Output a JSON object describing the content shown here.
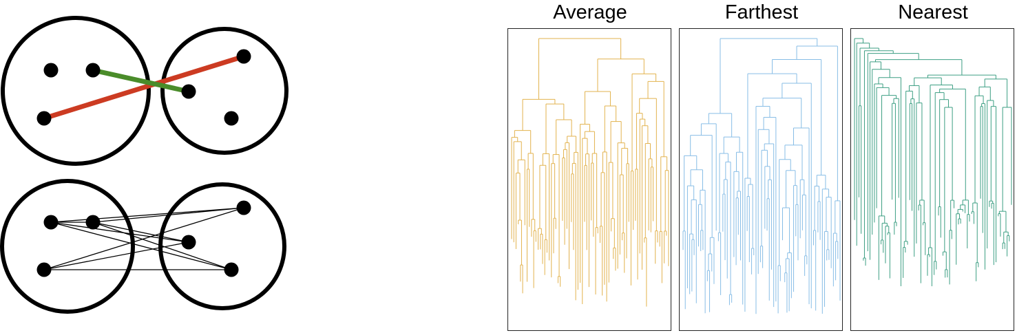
{
  "left_diagram": {
    "colors": {
      "farthest_link": "#cc3b22",
      "nearest_link": "#4a8c2a",
      "outline": "#000000",
      "all_pairs": "#000000"
    }
  },
  "dendrograms": [
    {
      "title": "Average",
      "color": "#e2b24d"
    },
    {
      "title": "Farthest",
      "color": "#87bde6"
    },
    {
      "title": "Nearest",
      "color": "#3b9e82"
    }
  ]
}
